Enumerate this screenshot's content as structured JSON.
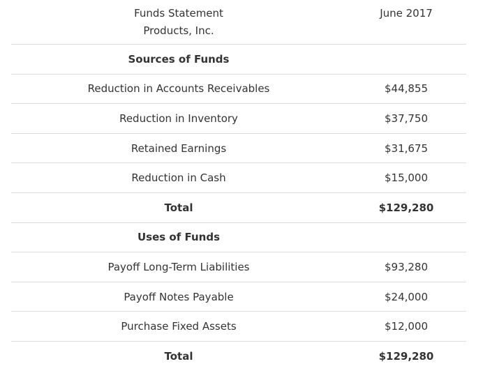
{
  "header": {
    "title_line1": "Funds Statement",
    "title_line2": "Products, Inc.",
    "period": "June 2017"
  },
  "sources": {
    "heading": "Sources of Funds",
    "items": [
      {
        "label": "Reduction in Accounts Receivables",
        "value": "$44,855"
      },
      {
        "label": "Reduction in Inventory",
        "value": "$37,750"
      },
      {
        "label": "Retained Earnings",
        "value": "$31,675"
      },
      {
        "label": "Reduction in Cash",
        "value": "$15,000"
      }
    ],
    "total_label": "Total",
    "total_value": "$129,280"
  },
  "uses": {
    "heading": "Uses of Funds",
    "items": [
      {
        "label": "Payoff Long-Term Liabilities",
        "value": "$93,280"
      },
      {
        "label": "Payoff Notes Payable",
        "value": "$24,000"
      },
      {
        "label": "Purchase Fixed Assets",
        "value": "$12,000"
      }
    ],
    "total_label": "Total",
    "total_value": "$129,280"
  }
}
